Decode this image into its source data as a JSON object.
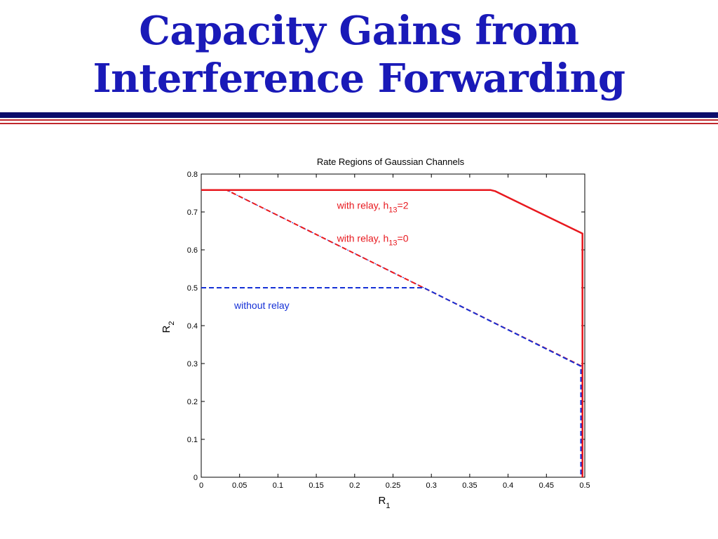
{
  "slide": {
    "title_line1": "Capacity Gains from",
    "title_line2": "Interference Forwarding"
  },
  "colors": {
    "title": "#1a1ab8",
    "rule_navy": "#0d0d6b",
    "rule_red": "#c0282d",
    "with_relay": "#e8181e",
    "without_relay": "#1530d6"
  },
  "chart_data": {
    "type": "line",
    "title": "Rate Regions of Gaussian Channels",
    "xlabel": "R",
    "xlabel_sub": "1",
    "ylabel": "R",
    "ylabel_sub": "2",
    "xlim": [
      0,
      0.5
    ],
    "ylim": [
      0,
      0.8
    ],
    "xticks": [
      "0",
      "0.05",
      "0.1",
      "0.15",
      "0.2",
      "0.25",
      "0.3",
      "0.35",
      "0.4",
      "0.45",
      "0.5"
    ],
    "yticks": [
      "0",
      "0.1",
      "0.2",
      "0.3",
      "0.4",
      "0.5",
      "0.6",
      "0.7",
      "0.8"
    ],
    "grid": false,
    "series": [
      {
        "key": "relay_h2",
        "style": "solid",
        "color": "#e8181e",
        "x": [
          0,
          0.033,
          0.377,
          0.383,
          0.497,
          0.497
        ],
        "y": [
          0.758,
          0.758,
          0.758,
          0.755,
          0.643,
          0
        ]
      },
      {
        "key": "relay_h0",
        "style": "dashed",
        "color": "#e8181e",
        "x": [
          0,
          0.033,
          0.497,
          0.497
        ],
        "y": [
          0.758,
          0.758,
          0.292,
          0
        ]
      },
      {
        "key": "no_relay",
        "style": "dashed",
        "color": "#1530d6",
        "x": [
          0,
          0.29,
          0.495,
          0.495
        ],
        "y": [
          0.5,
          0.5,
          0.293,
          0
        ]
      },
      {
        "key": "no_relay_diag",
        "style": "thin",
        "color": "#1530d6",
        "x": [
          0.033,
          0.29
        ],
        "y": [
          0.758,
          0.5
        ]
      }
    ],
    "annotations": [
      {
        "key": "relay_h2",
        "text": "with relay, h",
        "sub": "13",
        "suffix": "=2",
        "color": "#e8181e",
        "x": 0.177,
        "y": 0.708
      },
      {
        "key": "relay_h0",
        "text": "with relay, h",
        "sub": "13",
        "suffix": "=0",
        "color": "#e8181e",
        "x": 0.177,
        "y": 0.621
      },
      {
        "key": "no_relay",
        "text": "without relay",
        "sub": "",
        "suffix": "",
        "color": "#1530d6",
        "x": 0.043,
        "y": 0.444
      }
    ]
  }
}
